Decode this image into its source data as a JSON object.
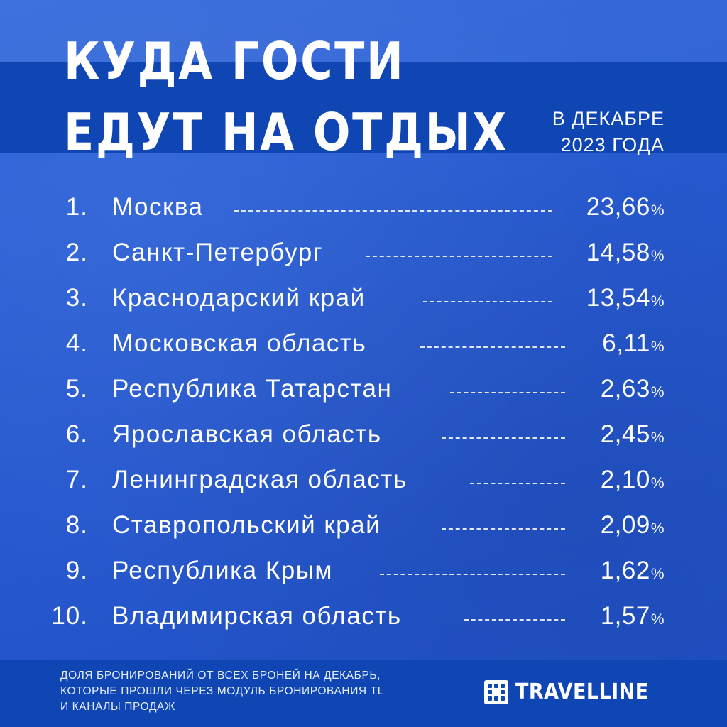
{
  "header": {
    "title_line1": "КУДА ГОСТИ",
    "title_line2": "ЕДУТ НА ОТДЫХ",
    "subtitle_line1": "В ДЕКАБРЕ",
    "subtitle_line2": "2023 ГОДА"
  },
  "ranking": [
    {
      "rank": "1.",
      "region": "Москва",
      "value": "23,66",
      "unit": "%"
    },
    {
      "rank": "2.",
      "region": "Санкт-Петербург",
      "value": "14,58",
      "unit": "%"
    },
    {
      "rank": "3.",
      "region": "Краснодарский край",
      "value": "13,54",
      "unit": "%"
    },
    {
      "rank": "4.",
      "region": "Московская область",
      "value": "6,11",
      "unit": "%"
    },
    {
      "rank": "5.",
      "region": "Республика Татарстан",
      "value": "2,63",
      "unit": "%"
    },
    {
      "rank": "6.",
      "region": "Ярославская область",
      "value": "2,45",
      "unit": "%"
    },
    {
      "rank": "7.",
      "region": "Ленинградская область",
      "value": "2,10",
      "unit": "%"
    },
    {
      "rank": "8.",
      "region": "Ставропольский край",
      "value": "2,09",
      "unit": "%"
    },
    {
      "rank": "9.",
      "region": "Республика Крым",
      "value": "1,62",
      "unit": "%"
    },
    {
      "rank": "10.",
      "region": "Владимирская область",
      "value": "1,57",
      "unit": "%"
    }
  ],
  "footer": {
    "note_line1": "ДОЛЯ БРОНИРОВАНИЙ ОТ ВСЕХ БРОНЕЙ НА ДЕКАБРЬ,",
    "note_line2": "КОТОРЫЕ ПРОШЛИ ЧЕРЕЗ МОДУЛЬ БРОНИРОВАНИЯ TL",
    "note_line3": "И КАНАЛЫ ПРОДАЖ",
    "logo_text": "TRAVELLINE",
    "logo_icon": "travelline-dots-icon"
  },
  "colors": {
    "background": "#2658cf",
    "band": "#0f46b4",
    "text": "#ffffff"
  }
}
